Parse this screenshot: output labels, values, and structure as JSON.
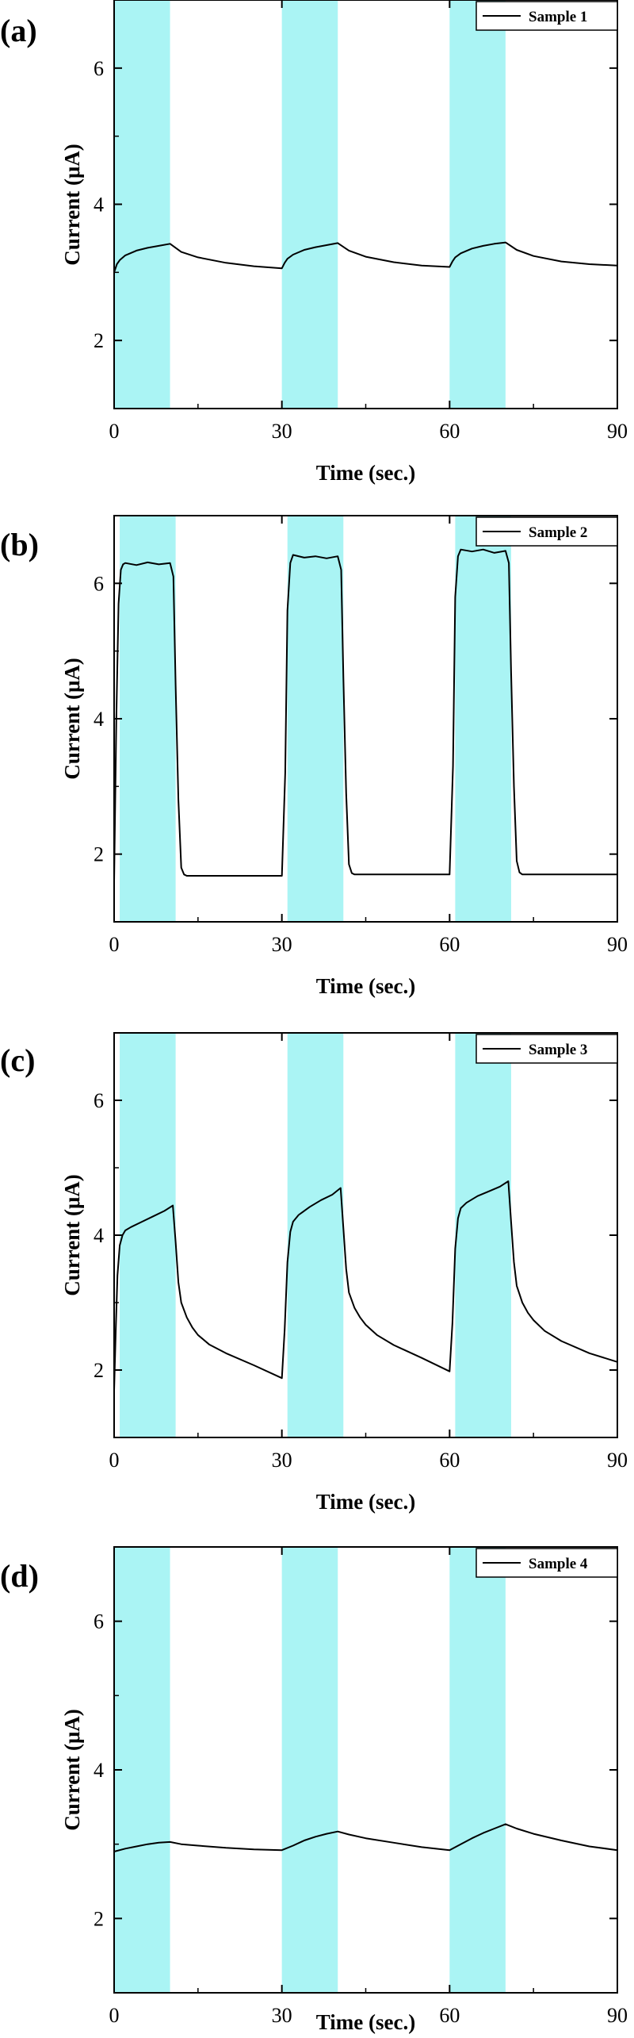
{
  "chart_data": [
    {
      "type": "line",
      "panel_label": "(a)",
      "xlabel": "Time (sec.)",
      "ylabel": "Current (μA)",
      "xlim": [
        0,
        90
      ],
      "ylim": [
        1,
        7
      ],
      "xticks": [
        0,
        30,
        60,
        90
      ],
      "yticks": [
        2,
        4,
        6
      ],
      "legend_position": "top-right",
      "grid": false,
      "highlight_color": "#aaf4f4",
      "line_color": "#000000",
      "highlights": [
        [
          0,
          10
        ],
        [
          30,
          40
        ],
        [
          60,
          70
        ]
      ],
      "series": [
        {
          "name": "Sample 1",
          "x": [
            0,
            0.5,
            1,
            2,
            4,
            6,
            8,
            10,
            12,
            15,
            20,
            25,
            30,
            30.5,
            31,
            32,
            34,
            36,
            38,
            40,
            42,
            45,
            50,
            55,
            60,
            60.5,
            61,
            62,
            64,
            66,
            68,
            70,
            72,
            75,
            80,
            85,
            90
          ],
          "y": [
            3.0,
            3.12,
            3.18,
            3.25,
            3.32,
            3.36,
            3.39,
            3.42,
            3.3,
            3.22,
            3.14,
            3.09,
            3.06,
            3.14,
            3.2,
            3.26,
            3.33,
            3.37,
            3.4,
            3.43,
            3.32,
            3.23,
            3.15,
            3.1,
            3.08,
            3.16,
            3.22,
            3.28,
            3.35,
            3.39,
            3.42,
            3.44,
            3.33,
            3.24,
            3.16,
            3.12,
            3.1
          ]
        }
      ]
    },
    {
      "type": "line",
      "panel_label": "(b)",
      "xlabel": "Time (sec.)",
      "ylabel": "Current (μA)",
      "xlim": [
        0,
        90
      ],
      "ylim": [
        1,
        7
      ],
      "xticks": [
        0,
        30,
        60,
        90
      ],
      "yticks": [
        2,
        4,
        6
      ],
      "legend_position": "top-right",
      "grid": false,
      "highlight_color": "#aaf4f4",
      "line_color": "#000000",
      "highlights": [
        [
          1,
          11
        ],
        [
          31,
          41
        ],
        [
          61,
          71
        ]
      ],
      "series": [
        {
          "name": "Sample 2",
          "x": [
            0,
            0.4,
            0.8,
            1.2,
            1.6,
            2,
            4,
            6,
            8,
            10,
            10.6,
            11,
            11.5,
            12,
            12.5,
            13,
            15,
            20,
            25,
            30,
            30.6,
            31,
            31.5,
            32,
            34,
            36,
            38,
            40,
            40.6,
            41,
            41.5,
            42,
            42.5,
            43,
            45,
            50,
            55,
            60,
            60.6,
            61,
            61.5,
            62,
            64,
            66,
            68,
            70,
            70.6,
            71,
            71.5,
            72,
            72.5,
            73,
            75,
            80,
            85,
            90
          ],
          "y": [
            1.6,
            4.0,
            5.7,
            6.2,
            6.28,
            6.3,
            6.27,
            6.31,
            6.28,
            6.3,
            6.1,
            4.5,
            2.8,
            1.8,
            1.7,
            1.68,
            1.68,
            1.68,
            1.68,
            1.68,
            3.2,
            5.6,
            6.3,
            6.42,
            6.38,
            6.4,
            6.37,
            6.4,
            6.2,
            4.6,
            2.9,
            1.85,
            1.72,
            1.7,
            1.7,
            1.7,
            1.7,
            1.7,
            3.3,
            5.8,
            6.4,
            6.5,
            6.47,
            6.5,
            6.45,
            6.48,
            6.3,
            4.7,
            3.0,
            1.9,
            1.73,
            1.7,
            1.7,
            1.7,
            1.7,
            1.7
          ]
        }
      ]
    },
    {
      "type": "line",
      "panel_label": "(c)",
      "xlabel": "Time (sec.)",
      "ylabel": "Current (μA)",
      "xlim": [
        0,
        90
      ],
      "ylim": [
        1,
        7
      ],
      "xticks": [
        0,
        30,
        60,
        90
      ],
      "yticks": [
        2,
        4,
        6
      ],
      "legend_position": "top-right",
      "grid": false,
      "highlight_color": "#aaf4f4",
      "line_color": "#000000",
      "highlights": [
        [
          1,
          11
        ],
        [
          31,
          41
        ],
        [
          61,
          71
        ]
      ],
      "series": [
        {
          "name": "Sample 3",
          "x": [
            0,
            0.3,
            0.6,
            1,
            1.5,
            2,
            3,
            5,
            7,
            9,
            10.5,
            11,
            11.5,
            12,
            13,
            14,
            15,
            17,
            20,
            25,
            30,
            30.5,
            31,
            31.5,
            32,
            33,
            35,
            37,
            39,
            40.5,
            41,
            41.5,
            42,
            43,
            44,
            45,
            47,
            50,
            55,
            60,
            60.5,
            61,
            61.5,
            62,
            63,
            65,
            67,
            69,
            70.5,
            71,
            71.5,
            72,
            73,
            74,
            75,
            77,
            80,
            85,
            90
          ],
          "y": [
            1.7,
            2.6,
            3.4,
            3.85,
            4.0,
            4.07,
            4.12,
            4.2,
            4.28,
            4.36,
            4.44,
            3.9,
            3.3,
            3.0,
            2.78,
            2.63,
            2.52,
            2.38,
            2.25,
            2.07,
            1.88,
            2.6,
            3.6,
            4.05,
            4.2,
            4.3,
            4.42,
            4.52,
            4.6,
            4.7,
            4.1,
            3.5,
            3.15,
            2.92,
            2.78,
            2.67,
            2.52,
            2.37,
            2.18,
            1.98,
            2.7,
            3.8,
            4.25,
            4.4,
            4.48,
            4.58,
            4.65,
            4.72,
            4.8,
            4.2,
            3.6,
            3.25,
            3.0,
            2.85,
            2.74,
            2.58,
            2.43,
            2.25,
            2.12
          ]
        }
      ]
    },
    {
      "type": "line",
      "panel_label": "(d)",
      "xlabel": "Time (sec.)",
      "ylabel": "Current (μA)",
      "xlim": [
        0,
        90
      ],
      "ylim": [
        1,
        7
      ],
      "xticks": [
        0,
        30,
        60,
        90
      ],
      "yticks": [
        2,
        4,
        6
      ],
      "legend_position": "top-right",
      "grid": false,
      "highlight_color": "#aaf4f4",
      "line_color": "#000000",
      "highlights": [
        [
          0,
          10
        ],
        [
          30,
          40
        ],
        [
          60,
          70
        ]
      ],
      "series": [
        {
          "name": "Sample 4",
          "x": [
            0,
            2,
            4,
            6,
            8,
            10,
            12,
            15,
            20,
            25,
            30,
            32,
            34,
            36,
            38,
            40,
            42,
            45,
            50,
            55,
            60,
            62,
            64,
            66,
            68,
            70,
            72,
            75,
            80,
            85,
            90
          ],
          "y": [
            2.9,
            2.94,
            2.97,
            3.0,
            3.02,
            3.03,
            3.0,
            2.98,
            2.95,
            2.93,
            2.92,
            2.98,
            3.05,
            3.1,
            3.14,
            3.17,
            3.13,
            3.08,
            3.02,
            2.96,
            2.92,
            3.0,
            3.08,
            3.15,
            3.21,
            3.27,
            3.21,
            3.14,
            3.05,
            2.97,
            2.92
          ]
        }
      ]
    }
  ]
}
